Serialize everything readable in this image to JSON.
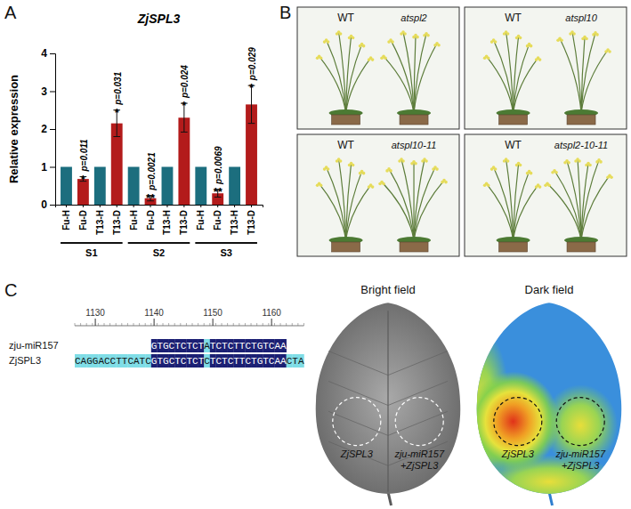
{
  "panel_labels": [
    "A",
    "B",
    "C"
  ],
  "chart_data": {
    "type": "bar",
    "title": "ZjSPL3",
    "y_label": "Relative expression",
    "categories": [
      "Fu-H",
      "Fu-D",
      "T13-H",
      "T13-D",
      "Fu-H",
      "Fu-D",
      "T13-H",
      "T13-D",
      "Fu-H",
      "Fu-D",
      "T13-H",
      "T13-D"
    ],
    "values": [
      1,
      0.68,
      1,
      2.15,
      1,
      0.17,
      1,
      2.3,
      1,
      0.3,
      1,
      2.65
    ],
    "errors": [
      null,
      0.06,
      null,
      0.35,
      null,
      0.07,
      null,
      0.38,
      null,
      0.1,
      null,
      0.5
    ],
    "colors": [
      "#1c6e7e",
      "#b31b1b",
      "#1c6e7e",
      "#b31b1b",
      "#1c6e7e",
      "#b31b1b",
      "#1c6e7e",
      "#b31b1b",
      "#1c6e7e",
      "#b31b1b",
      "#1c6e7e",
      "#b31b1b"
    ],
    "groups": [
      "S1",
      "S2",
      "S3"
    ],
    "star_labels": [
      null,
      "*",
      null,
      "*",
      null,
      "**",
      null,
      "*",
      null,
      "**",
      null,
      "*"
    ],
    "p_labels": [
      null,
      "p=0.011",
      null,
      "p=0.031",
      null,
      "p=0.0021",
      null,
      "p=0.024",
      null,
      "p=0.0069",
      null,
      "p=0.029"
    ],
    "ylim": [
      0,
      4
    ],
    "yticks": [
      0,
      1,
      2,
      3,
      4
    ]
  },
  "plants": {
    "panels": [
      [
        "WT",
        "atspl2"
      ],
      [
        "WT",
        "atspl10"
      ],
      [
        "WT",
        "atspl10-11"
      ],
      [
        "WT",
        "atspl2-10-11"
      ]
    ]
  },
  "alignment": {
    "ruler": [
      1130,
      1140,
      1150,
      1160
    ],
    "sequence_start": 1127,
    "rows": [
      {
        "name": "zju-miR157",
        "sequence": "GTGCTCTCTATCTCTTCTGTCAA"
      },
      {
        "name": "ZjSPL3",
        "sequence": "CAGGACCTTCATCGTGCTCTCTCTCTCTTCTGTCAACTA"
      }
    ]
  },
  "leaf": {
    "titles": [
      "Bright field",
      "Dark field"
    ],
    "spots": [
      "ZjSPL3",
      "zju-miR157+ZjSPL3"
    ]
  }
}
